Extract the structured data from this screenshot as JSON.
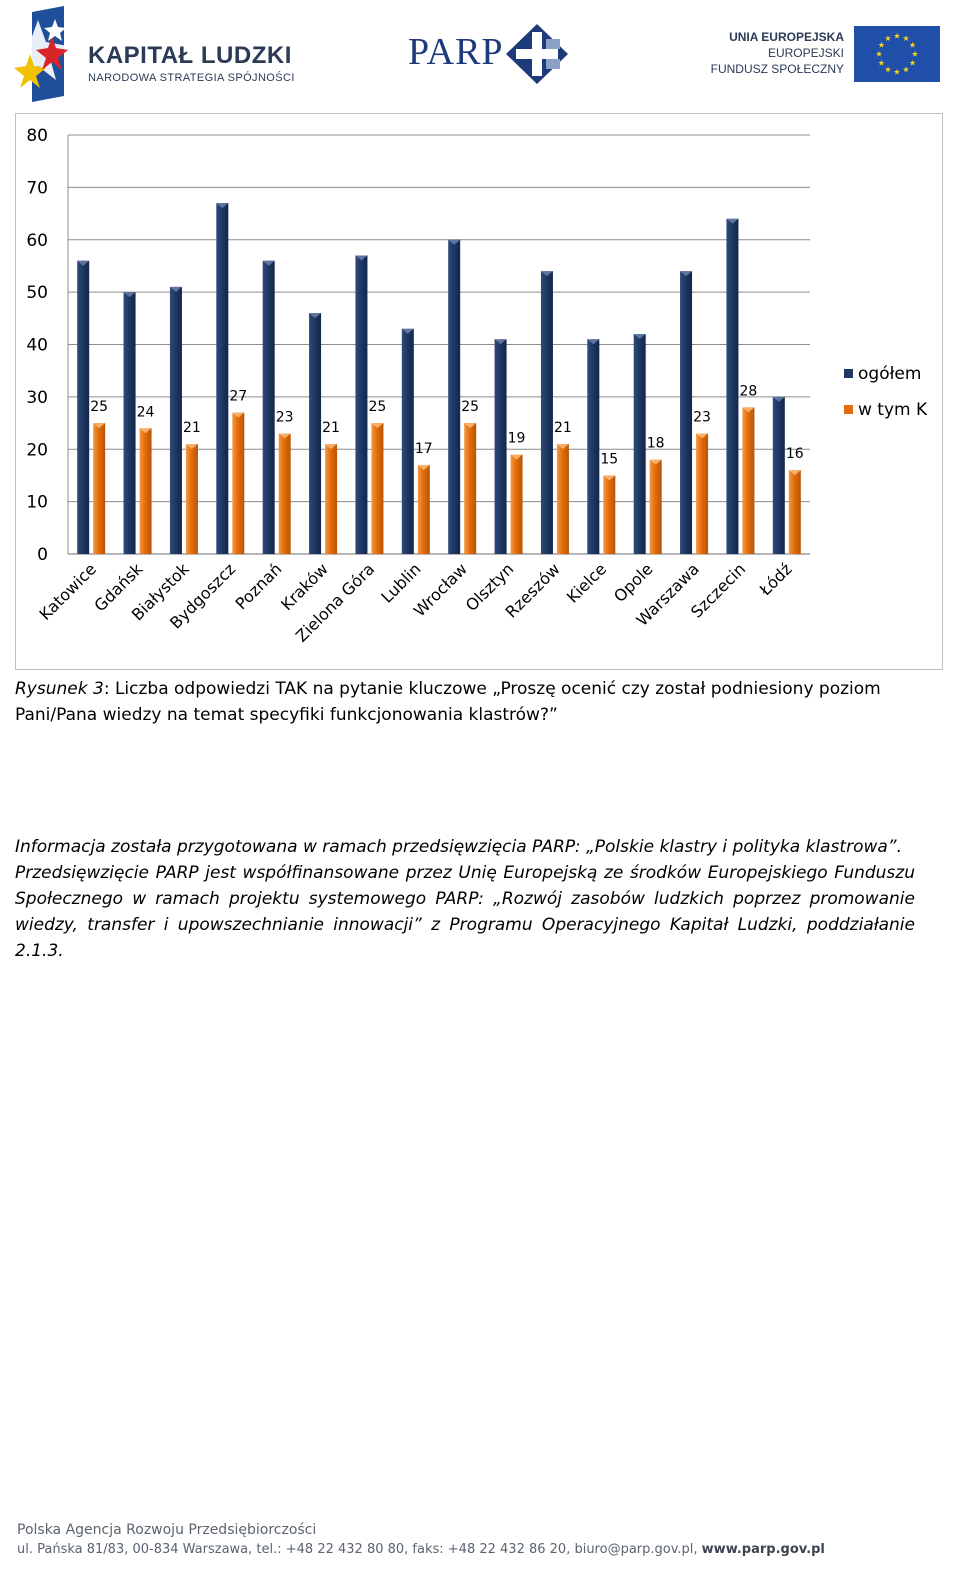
{
  "header": {
    "kl_title": "KAPITAŁ LUDZKI",
    "kl_subtitle": "NARODOWA STRATEGIA SPÓJNOŚCI",
    "parp": "PARP",
    "ue_line1": "UNIA EUROPEJSKA",
    "ue_line2": "EUROPEJSKI",
    "ue_line3": "FUNDUSZ SPOŁECZNY"
  },
  "chart_data": {
    "type": "bar",
    "title": "",
    "xlabel": "",
    "ylabel": "",
    "ylim": [
      0,
      80
    ],
    "yticks": [
      0,
      10,
      20,
      30,
      40,
      50,
      60,
      70,
      80
    ],
    "grid": true,
    "legend_position": "right",
    "categories": [
      "Katowice",
      "Gdańsk",
      "Białystok",
      "Bydgoszcz",
      "Poznań",
      "Kraków",
      "Zielona Góra",
      "Lublin",
      "Wrocław",
      "Olsztyn",
      "Rzeszów",
      "Kielce",
      "Opole",
      "Warszawa",
      "Szczecin",
      "Łódź"
    ],
    "series": [
      {
        "name": "ogółem",
        "color": "#1f3864",
        "values": [
          56,
          50,
          51,
          67,
          56,
          46,
          57,
          43,
          60,
          41,
          54,
          41,
          42,
          54,
          64,
          30
        ],
        "labels": false
      },
      {
        "name": "w tym K",
        "color": "#e46c0a",
        "values": [
          25,
          24,
          21,
          27,
          23,
          21,
          25,
          17,
          25,
          19,
          21,
          15,
          18,
          23,
          28,
          16
        ],
        "labels": true
      }
    ]
  },
  "caption": {
    "label": "Rysunek 3",
    "text": ": Liczba odpowiedzi TAK na pytanie kluczowe „Proszę ocenić czy został podniesiony poziom Pani/Pana wiedzy na temat specyfiki funkcjonowania klastrów?”"
  },
  "info": {
    "p1": "Informacja została przygotowana w ramach przedsięwzięcia PARP: „Polskie klastry i polityka klastrowa”.",
    "p2": "Przedsięwzięcie PARP jest współfinansowane przez Unię Europejską ze środków Europejskiego Funduszu Społecznego w ramach projektu systemowego PARP: „Rozwój zasobów ludzkich poprzez promowanie wiedzy, transfer i upowszechnianie innowacji” z Programu Operacyjnego Kapitał Ludzki, poddziałanie 2.1.3."
  },
  "footer": {
    "org": "Polska Agencja Rozwoju Przedsiębiorczości",
    "address": "ul. Pańska 81/83, 00-834 Warszawa, tel.: +48 22 432 80 80, faks: +48 22 432 86 20, biuro@parp.gov.pl, ",
    "website": "www.parp.gov.pl"
  }
}
